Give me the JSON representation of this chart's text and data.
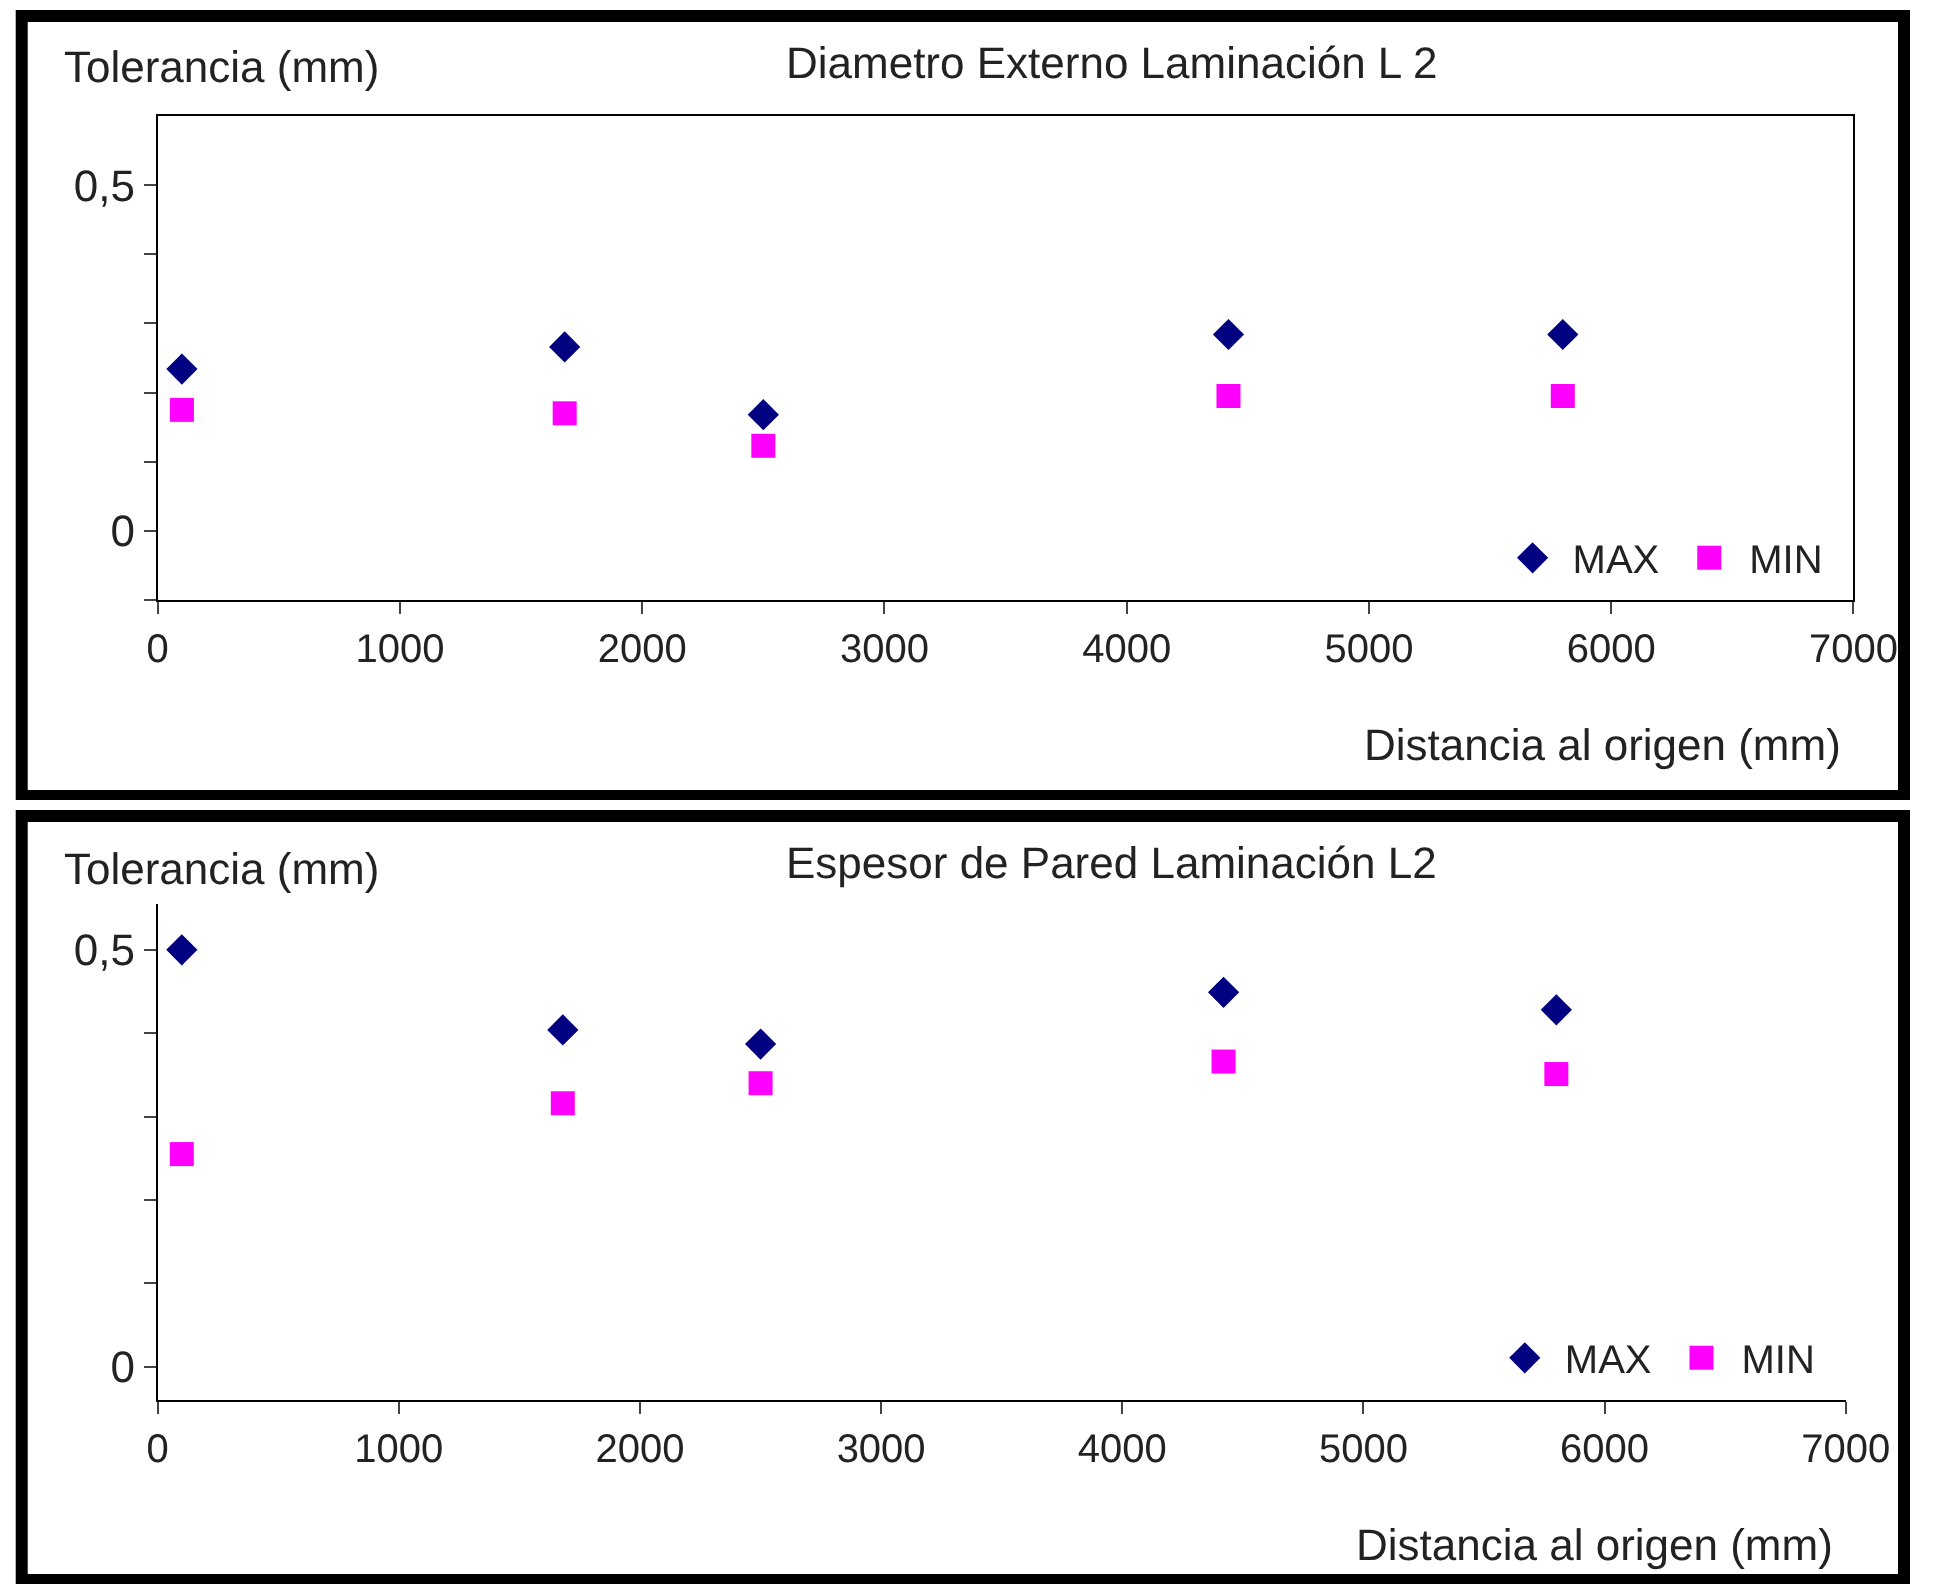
{
  "chart_data": [
    {
      "type": "scatter",
      "title": "Diametro Externo Laminación L 2",
      "xlabel": "Distancia al origen (mm)",
      "ylabel": "Tolerancia (mm)",
      "legend": "bottom right",
      "x": [
        100,
        1680,
        2500,
        4420,
        5800
      ],
      "series": [
        {
          "name": "MAX",
          "color": "#000080",
          "marker": "diamond",
          "values": [
            0.234,
            0.266,
            0.168,
            0.284,
            0.284
          ]
        },
        {
          "name": "MIN",
          "color": "#ff00ff",
          "marker": "square",
          "values": [
            0.175,
            0.17,
            0.123,
            0.195,
            0.195
          ]
        }
      ],
      "xlim": [
        0,
        7000
      ],
      "xticks": [
        0,
        1000,
        2000,
        3000,
        4000,
        5000,
        6000,
        7000
      ],
      "ylim": [
        -0.1,
        0.6
      ],
      "yticks": [
        {
          "value": -0.1,
          "label": null
        },
        0,
        {
          "value": 0.1,
          "label": null
        },
        {
          "value": 0.2,
          "label": null
        },
        {
          "value": 0.3,
          "label": null
        },
        {
          "value": 0.4,
          "label": null
        },
        {
          "value": 0.5,
          "label": "0,5"
        }
      ]
    },
    {
      "type": "scatter",
      "title": "Espesor de Pared Laminación L2",
      "xlabel": "Distancia al origen (mm)",
      "ylabel": "Tolerancia (mm)",
      "legend": "bottom right",
      "x": [
        100,
        1680,
        2500,
        4420,
        5800
      ],
      "series": [
        {
          "name": "MAX",
          "color": "#000080",
          "marker": "diamond",
          "values": [
            0.5,
            0.404,
            0.387,
            0.449,
            0.428
          ]
        },
        {
          "name": "MIN",
          "color": "#ff00ff",
          "marker": "square",
          "values": [
            0.255,
            0.316,
            0.34,
            0.366,
            0.351
          ]
        }
      ],
      "xlim": [
        0,
        7000
      ],
      "xticks": [
        0,
        1000,
        2000,
        3000,
        4000,
        5000,
        6000,
        7000
      ],
      "ylim": [
        -0.04,
        0.555
      ],
      "yticks": [
        0,
        {
          "value": 0.1,
          "label": null
        },
        {
          "value": 0.2,
          "label": null
        },
        {
          "value": 0.3,
          "label": null
        },
        {
          "value": 0.4,
          "label": null
        },
        {
          "value": 0.5,
          "label": "0,5"
        }
      ]
    }
  ]
}
